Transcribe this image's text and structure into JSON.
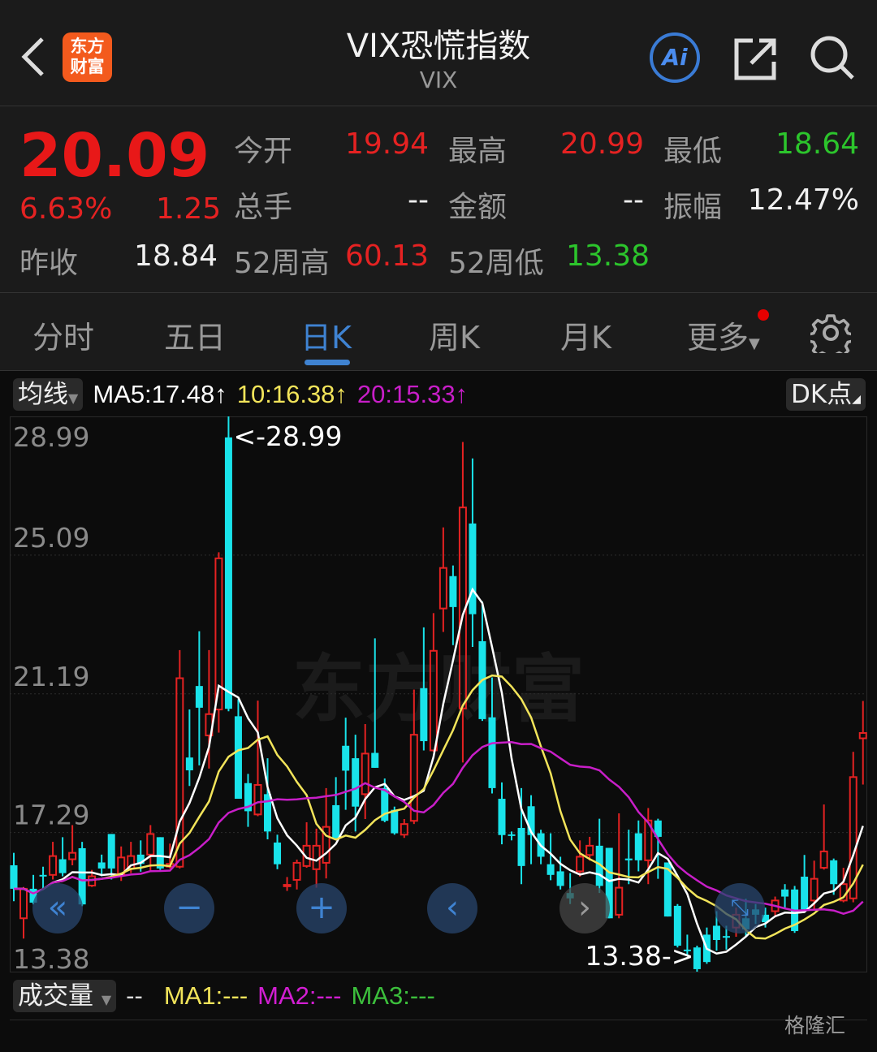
{
  "header": {
    "title": "VIX恐慌指数",
    "subtitle": "VIX",
    "logo_text": "东方财富",
    "ai_label": "Ai"
  },
  "quote": {
    "price": "20.09",
    "change_pct": "6.63%",
    "change": "1.25",
    "prev_close_label": "昨收",
    "prev_close": "18.84",
    "open_label": "今开",
    "open": "19.94",
    "high_label": "最高",
    "high": "20.99",
    "low_label": "最低",
    "low": "18.64",
    "volume_label": "总手",
    "volume": "--",
    "amount_label": "金额",
    "amount": "--",
    "amplitude_label": "振幅",
    "amplitude": "12.47%",
    "week52_high_label": "52周高",
    "week52_high": "60.13",
    "week52_low_label": "52周低",
    "week52_low": "13.38"
  },
  "tabs": [
    {
      "label": "分时"
    },
    {
      "label": "五日"
    },
    {
      "label": "日K",
      "active": true
    },
    {
      "label": "周K"
    },
    {
      "label": "月K"
    },
    {
      "label": "更多"
    }
  ],
  "ma_bar": {
    "selector": "均线",
    "ma5": "MA5:17.48↑",
    "ma10": "10:16.38↑",
    "ma20": "20:15.33↑",
    "dk": "DK点"
  },
  "volume_bar": {
    "selector": "成交量",
    "value": "--",
    "ma1": "MA1:---",
    "ma2": "MA2:---",
    "ma3": "MA3:---"
  },
  "watermark": "格隆汇",
  "colors": {
    "up": "#e52222",
    "down": "#19e3ea",
    "ma5": "#ffffff",
    "ma10": "#f2e45a",
    "ma20": "#c81ec8",
    "accent": "#3f83d2"
  },
  "chart_data": {
    "type": "candlestick",
    "ylim": [
      13.38,
      28.99
    ],
    "y_ticks": [
      "28.99",
      "25.09",
      "21.19",
      "17.29",
      "13.38"
    ],
    "max_label": "<-28.99",
    "min_label": "13.38->",
    "ohlc": [
      [
        16.37,
        16.72,
        15.36,
        15.71
      ],
      [
        14.88,
        15.76,
        14.31,
        15.71
      ],
      [
        15.71,
        16.1,
        15.27,
        15.32
      ],
      [
        16.1,
        16.33,
        15.71,
        16.06
      ],
      [
        16.1,
        17.03,
        15.97,
        16.63
      ],
      [
        16.54,
        17.16,
        16.06,
        16.15
      ],
      [
        16.54,
        17.5,
        16.37,
        16.72
      ],
      [
        16.85,
        17.03,
        15.22,
        15.27
      ],
      [
        15.8,
        16.24,
        15.76,
        16.06
      ],
      [
        16.45,
        16.67,
        16.06,
        16.28
      ],
      [
        17.25,
        17.25,
        15.97,
        16.28
      ],
      [
        16.1,
        16.9,
        15.93,
        16.59
      ],
      [
        16.28,
        17.03,
        16.15,
        16.63
      ],
      [
        16.67,
        17.07,
        16.19,
        16.41
      ],
      [
        16.67,
        17.5,
        16.19,
        17.25
      ],
      [
        17.16,
        17.16,
        16.24,
        16.28
      ],
      [
        16.33,
        16.98,
        16.28,
        16.41
      ],
      [
        16.33,
        22.42,
        16.28,
        21.63
      ],
      [
        19.4,
        20.75,
        18.6,
        19.04
      ],
      [
        21.41,
        22.95,
        19.18,
        20.8
      ],
      [
        20.02,
        22.42,
        19.09,
        20.62
      ],
      [
        20.75,
        25.17,
        20.1,
        25.0
      ],
      [
        28.4,
        28.99,
        20.7,
        20.77
      ],
      [
        20.56,
        21.04,
        18.24,
        18.24
      ],
      [
        18.68,
        18.94,
        17.45,
        17.89
      ],
      [
        17.8,
        21.0,
        17.75,
        18.63
      ],
      [
        18.37,
        19.38,
        17.1,
        17.32
      ],
      [
        17.01,
        17.23,
        16.26,
        16.4
      ],
      [
        15.78,
        16.04,
        15.65,
        15.82
      ],
      [
        15.96,
        16.53,
        15.69,
        16.44
      ],
      [
        16.35,
        17.58,
        16.3,
        16.92
      ],
      [
        16.26,
        17.4,
        15.74,
        16.92
      ],
      [
        16.44,
        18.54,
        16.0,
        17.45
      ],
      [
        18.06,
        18.85,
        17.1,
        17.14
      ],
      [
        19.73,
        20.52,
        17.93,
        19.03
      ],
      [
        19.38,
        20.04,
        17.32,
        18.02
      ],
      [
        18.37,
        20.34,
        17.67,
        19.51
      ],
      [
        19.53,
        22.75,
        19.11,
        19.11
      ],
      [
        18.54,
        18.81,
        17.58,
        17.62
      ],
      [
        17.93,
        18.02,
        17.23,
        17.27
      ],
      [
        17.23,
        17.67,
        17.14,
        17.53
      ],
      [
        17.62,
        21.31,
        17.53,
        20.04
      ],
      [
        21.35,
        23.06,
        19.6,
        19.86
      ],
      [
        19.6,
        23.46,
        19.56,
        22.4
      ],
      [
        23.59,
        25.87,
        22.93,
        24.73
      ],
      [
        24.5,
        24.8,
        22.56,
        23.63
      ],
      [
        20.78,
        28.27,
        19.26,
        26.43
      ],
      [
        25.98,
        27.81,
        22.51,
        23.43
      ],
      [
        22.67,
        23.79,
        20.43,
        20.48
      ],
      [
        20.53,
        21.65,
        18.39,
        18.54
      ],
      [
        18.24,
        18.7,
        16.96,
        17.22
      ],
      [
        17.24,
        17.32,
        17.07,
        17.2
      ],
      [
        17.42,
        18.54,
        15.84,
        16.35
      ],
      [
        18.03,
        18.34,
        16.4,
        17.22
      ],
      [
        17.27,
        17.37,
        16.4,
        16.61
      ],
      [
        16.4,
        17.27,
        15.95,
        16.1
      ],
      [
        16.2,
        16.61,
        15.69,
        15.79
      ],
      [
        15.59,
        16.15,
        15.28,
        15.44
      ],
      [
        16.2,
        17.07,
        16.05,
        16.61
      ],
      [
        16.66,
        17.17,
        16.5,
        16.92
      ],
      [
        16.92,
        17.68,
        15.59,
        15.79
      ],
      [
        16.86,
        16.86,
        14.88,
        14.88
      ],
      [
        14.98,
        17.83,
        14.88,
        15.74
      ],
      [
        16.56,
        17.37,
        15.84,
        16.51
      ],
      [
        17.27,
        17.63,
        16.2,
        16.51
      ],
      [
        16.51,
        17.98,
        15.84,
        17.63
      ],
      [
        17.63,
        17.68,
        15.99,
        17.17
      ],
      [
        16.45,
        16.45,
        14.93,
        14.93
      ],
      [
        15.23,
        15.28,
        14.06,
        14.11
      ],
      [
        14.0,
        14.42,
        13.86,
        13.97
      ],
      [
        14.06,
        14.11,
        13.38,
        13.45
      ],
      [
        14.42,
        14.62,
        13.6,
        13.65
      ],
      [
        14.67,
        15.08,
        13.97,
        14.27
      ],
      [
        14.38,
        14.67,
        14.0,
        14.36
      ],
      [
        14.62,
        15.18,
        14.36,
        14.98
      ],
      [
        14.88,
        15.43,
        14.36,
        14.57
      ],
      [
        15.13,
        15.28,
        14.72,
        14.98
      ],
      [
        14.98,
        15.18,
        14.62,
        14.77
      ],
      [
        15.08,
        15.49,
        14.93,
        15.38
      ],
      [
        15.69,
        15.84,
        15.18,
        15.49
      ],
      [
        15.69,
        15.79,
        14.47,
        14.52
      ],
      [
        16.05,
        16.66,
        15.08,
        15.13
      ],
      [
        15.38,
        16.5,
        15.13,
        15.99
      ],
      [
        16.3,
        18.08,
        16.25,
        16.76
      ],
      [
        16.51,
        16.56,
        15.54,
        15.84
      ],
      [
        15.38,
        16.3,
        15.33,
        15.84
      ],
      [
        15.44,
        19.56,
        15.33,
        18.85
      ],
      [
        19.94,
        20.99,
        18.64,
        20.09
      ]
    ],
    "ma_periods": [
      5,
      10,
      20
    ]
  }
}
